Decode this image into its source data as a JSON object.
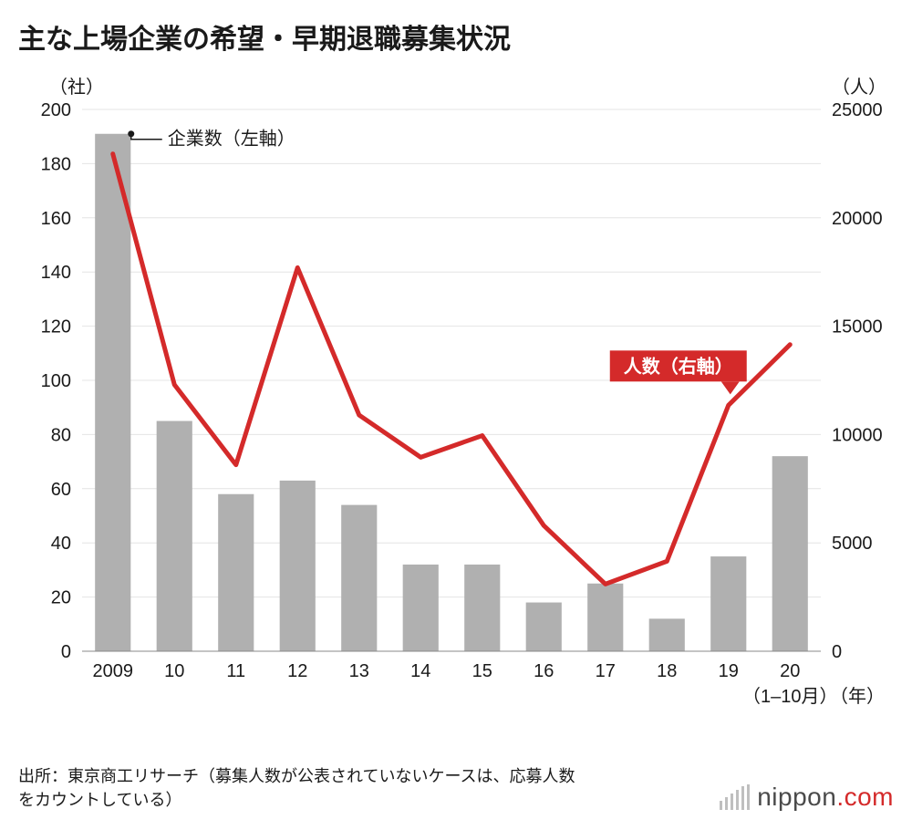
{
  "title": "主な上場企業の希望・早期退職募集状況",
  "title_fontsize": 30,
  "chart": {
    "type": "bar+line dual-axis",
    "background_color": "#ffffff",
    "grid_color": "#e4e4e4",
    "axis_color": "#888888",
    "tick_font_size": 20,
    "axis_label_font_size": 20,
    "left_axis": {
      "unit_label": "（社）",
      "min": 0,
      "max": 200,
      "tick_step": 20,
      "ticks": [
        0,
        20,
        40,
        60,
        80,
        100,
        120,
        140,
        160,
        180,
        200
      ]
    },
    "right_axis": {
      "unit_label": "（人）",
      "min": 0,
      "max": 25000,
      "tick_step": 5000,
      "ticks": [
        0,
        5000,
        10000,
        15000,
        20000,
        25000
      ]
    },
    "x_axis": {
      "labels": [
        "2009",
        "10",
        "11",
        "12",
        "13",
        "14",
        "15",
        "16",
        "17",
        "18",
        "19",
        "20"
      ],
      "sublabel_last": "（1–10月）",
      "unit_label": "（年）"
    },
    "bars": {
      "color": "#b0b0b0",
      "width_ratio": 0.58,
      "values": [
        191,
        85,
        58,
        63,
        54,
        32,
        32,
        18,
        25,
        12,
        35,
        72
      ],
      "legend_text": "企業数（左軸）",
      "legend_pointer_color": "#1a1a1a"
    },
    "line": {
      "color": "#d42a2a",
      "width": 5,
      "values": [
        22950,
        12300,
        8600,
        17700,
        10900,
        8950,
        9950,
        5800,
        3100,
        4150,
        11350,
        14150
      ],
      "legend_text": "人数（右軸）",
      "legend_box_color": "#d42a2a",
      "legend_text_color": "#ffffff"
    }
  },
  "source_text": "出所：東京商工リサーチ（募集人数が公表されていないケースは、応募人数をカウントしている）",
  "source_fontsize": 18,
  "logo": {
    "text_main": "nippon",
    "text_suffix": ".com",
    "main_color": "#4a4a4a",
    "accent_color": "#d42a2a",
    "bars_color": "#bfbfbf"
  }
}
